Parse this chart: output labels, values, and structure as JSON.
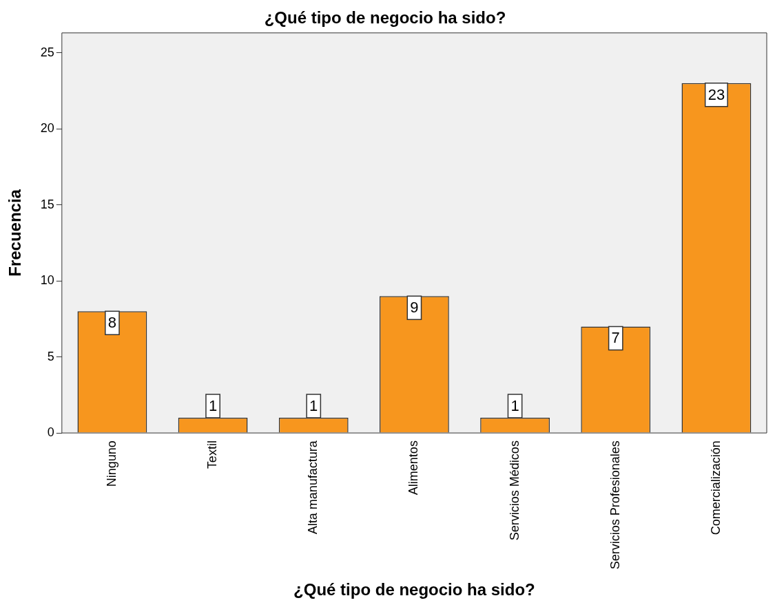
{
  "chart_data": {
    "type": "bar",
    "title": "¿Qué tipo de negocio ha sido?",
    "xlabel": "¿Qué tipo de negocio ha sido?",
    "ylabel": "Frecuencia",
    "categories": [
      "Ninguno",
      "Textil",
      "Alta manufactura",
      "Alimentos",
      "Servicios Médicos",
      "Servicios Profesionales",
      "Comercialización"
    ],
    "values": [
      8,
      1,
      1,
      9,
      1,
      7,
      23
    ],
    "color": "#f7961e",
    "ylim": [
      0,
      26.3
    ],
    "yticks": [
      0,
      5,
      10,
      15,
      20,
      25
    ],
    "grid": false,
    "legend": false,
    "data_labels": true
  }
}
